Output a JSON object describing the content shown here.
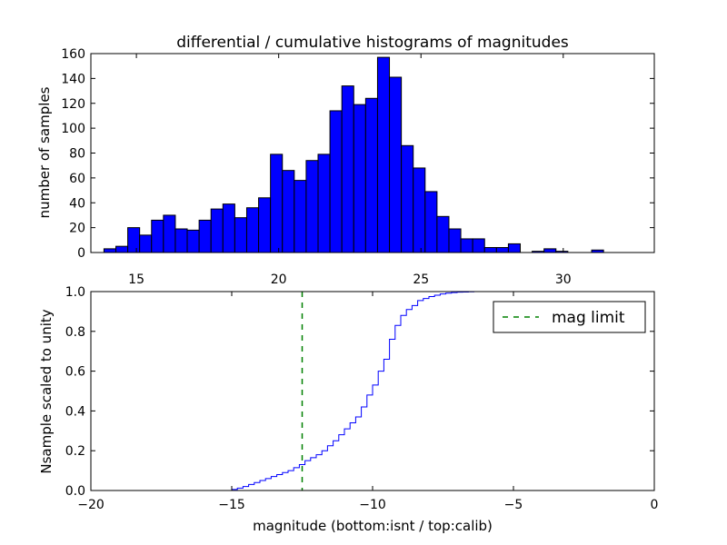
{
  "figure": {
    "title": "differential / cumulative histograms of magnitudes",
    "xlabel": "magnitude (bottom:isnt / top:calib)"
  },
  "colors": {
    "bars": "#0000ff",
    "step": "#0000ff",
    "limit": "#008000",
    "frame": "#000000"
  },
  "chart_data": [
    {
      "type": "bar",
      "name": "differential-histogram",
      "title": "differential / cumulative histograms of magnitudes",
      "ylabel": "number of samples",
      "xlim": [
        13.4,
        33.2
      ],
      "ylim": [
        0,
        160
      ],
      "xticks": [
        15,
        20,
        25,
        30
      ],
      "yticks": [
        0,
        20,
        40,
        60,
        80,
        100,
        120,
        140,
        160
      ],
      "xticks_position": "bottom of panel",
      "bin_edges_start": 13.86,
      "bin_width": 0.418,
      "values": [
        3,
        5,
        20,
        14,
        26,
        30,
        19,
        18,
        26,
        35,
        39,
        28,
        36,
        44,
        79,
        66,
        58,
        74,
        79,
        114,
        134,
        119,
        124,
        157,
        141,
        86,
        68,
        49,
        29,
        19,
        11,
        11,
        4,
        4,
        7,
        0,
        1,
        3,
        1,
        0,
        0,
        2
      ]
    },
    {
      "type": "line",
      "name": "cumulative-histogram",
      "step": true,
      "ylabel": "Nsample scaled to unity",
      "xlabel": "magnitude (bottom:isnt / top:calib)",
      "xlim": [
        -20,
        0
      ],
      "ylim": [
        0,
        1.0
      ],
      "xticks": [
        -20,
        -15,
        -10,
        -5,
        0
      ],
      "xtick_labels": [
        "−20",
        "−15",
        "−10",
        "−5",
        "0"
      ],
      "yticks": [
        0.0,
        0.2,
        0.4,
        0.6,
        0.8,
        1.0
      ],
      "ytick_labels": [
        "0.0",
        "0.2",
        "0.4",
        "0.6",
        "0.8",
        "1.0"
      ],
      "x_start": -19.6,
      "x_step": 0.2,
      "cdf_from": -15.0,
      "cdf_values": [
        0.005,
        0.012,
        0.02,
        0.03,
        0.04,
        0.05,
        0.06,
        0.07,
        0.08,
        0.09,
        0.1,
        0.115,
        0.13,
        0.15,
        0.165,
        0.18,
        0.2,
        0.225,
        0.25,
        0.28,
        0.31,
        0.34,
        0.37,
        0.42,
        0.48,
        0.53,
        0.6,
        0.66,
        0.76,
        0.83,
        0.88,
        0.91,
        0.93,
        0.955,
        0.965,
        0.975,
        0.982,
        0.988,
        0.992,
        0.995,
        0.997,
        0.998,
        0.999,
        1.0
      ],
      "series": [
        {
          "name": "mag limit",
          "style": "dashed",
          "x": -12.5
        }
      ],
      "legend": {
        "placement": "upper-right",
        "entries": [
          "mag limit"
        ]
      }
    }
  ]
}
